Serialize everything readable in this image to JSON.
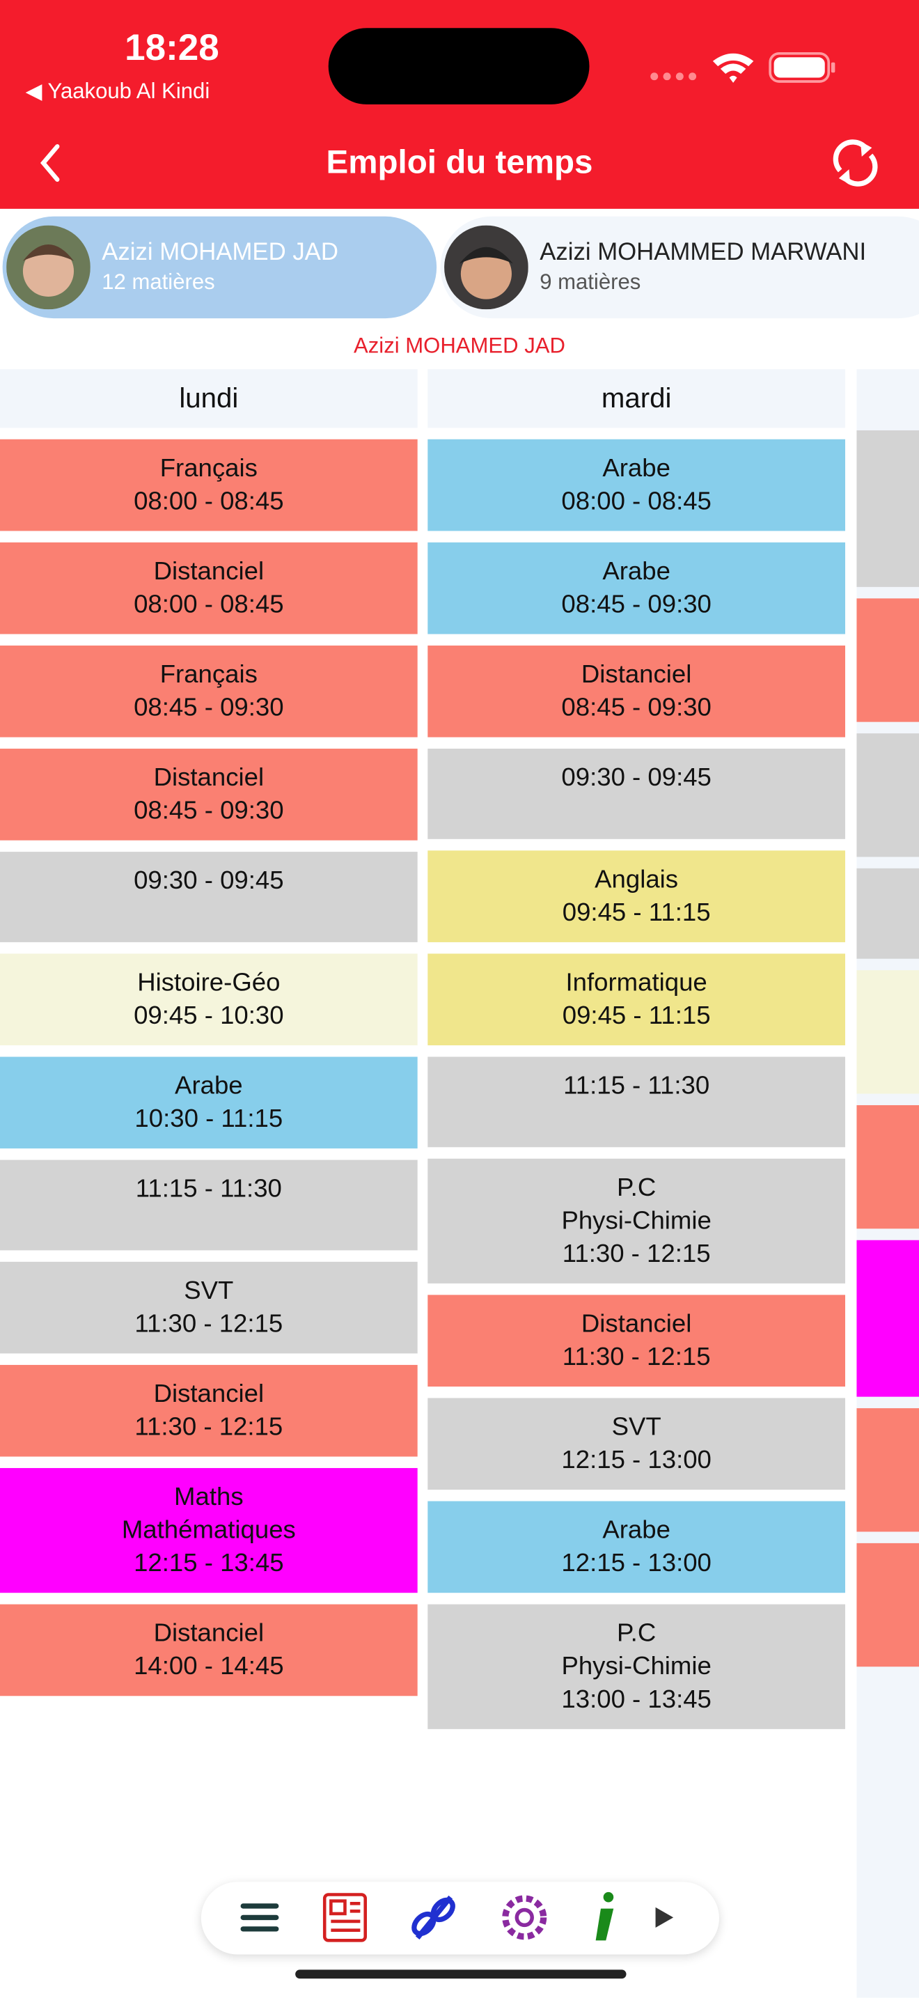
{
  "status_bar": {
    "time": "18:28",
    "back_app": "◀ Yaakoub Al Kindi"
  },
  "header": {
    "title": "Emploi du temps"
  },
  "students": [
    {
      "name": "Azizi MOHAMED JAD",
      "subjects": "12 matières",
      "selected": true
    },
    {
      "name": "Azizi MOHAMMED MARWANI",
      "subjects": "9 matières",
      "selected": false
    }
  ],
  "selected_student": "Azizi MOHAMED JAD",
  "days": [
    {
      "name": "lundi",
      "slots": [
        {
          "lines": [
            "Français",
            "08:00 - 08:45"
          ],
          "color": "#fa8072"
        },
        {
          "lines": [
            "Distanciel",
            "08:00 - 08:45"
          ],
          "color": "#fa8072"
        },
        {
          "lines": [
            "Français",
            "08:45 - 09:30"
          ],
          "color": "#fa8072"
        },
        {
          "lines": [
            "Distanciel",
            "08:45 - 09:30"
          ],
          "color": "#fa8072"
        },
        {
          "lines": [
            "09:30 - 09:45"
          ],
          "color": "#d3d3d3"
        },
        {
          "lines": [
            "Histoire-Géo",
            "09:45 - 10:30"
          ],
          "color": "#f5f5dc"
        },
        {
          "lines": [
            "Arabe",
            "10:30 - 11:15"
          ],
          "color": "#87ceeb"
        },
        {
          "lines": [
            "11:15 - 11:30"
          ],
          "color": "#d3d3d3"
        },
        {
          "lines": [
            "SVT",
            "11:30 - 12:15"
          ],
          "color": "#d3d3d3"
        },
        {
          "lines": [
            "Distanciel",
            "11:30 - 12:15"
          ],
          "color": "#fa8072"
        },
        {
          "lines": [
            "Maths",
            "Mathématiques",
            "12:15 - 13:45"
          ],
          "color": "#ff00ff"
        },
        {
          "lines": [
            "Distanciel",
            "14:00 - 14:45"
          ],
          "color": "#fa8072"
        }
      ]
    },
    {
      "name": "mardi",
      "slots": [
        {
          "lines": [
            "Arabe",
            "08:00 - 08:45"
          ],
          "color": "#87ceeb"
        },
        {
          "lines": [
            "Arabe",
            "08:45 - 09:30"
          ],
          "color": "#87ceeb"
        },
        {
          "lines": [
            "Distanciel",
            "08:45 - 09:30"
          ],
          "color": "#fa8072"
        },
        {
          "lines": [
            "09:30 - 09:45"
          ],
          "color": "#d3d3d3"
        },
        {
          "lines": [
            "Anglais",
            "09:45 - 11:15"
          ],
          "color": "#f0e68c"
        },
        {
          "lines": [
            "Informatique",
            "09:45 - 11:15"
          ],
          "color": "#f0e68c"
        },
        {
          "lines": [
            "11:15 - 11:30"
          ],
          "color": "#d3d3d3"
        },
        {
          "lines": [
            "P.C",
            "Physi-Chimie",
            "11:30 - 12:15"
          ],
          "color": "#d3d3d3"
        },
        {
          "lines": [
            "Distanciel",
            "11:30 - 12:15"
          ],
          "color": "#fa8072"
        },
        {
          "lines": [
            "SVT",
            "12:15 - 13:00"
          ],
          "color": "#d3d3d3"
        },
        {
          "lines": [
            "Arabe",
            "12:15 - 13:00"
          ],
          "color": "#87ceeb"
        },
        {
          "lines": [
            "P.C",
            "Physi-Chimie",
            "13:00 - 13:45"
          ],
          "color": "#d3d3d3"
        }
      ]
    }
  ]
}
